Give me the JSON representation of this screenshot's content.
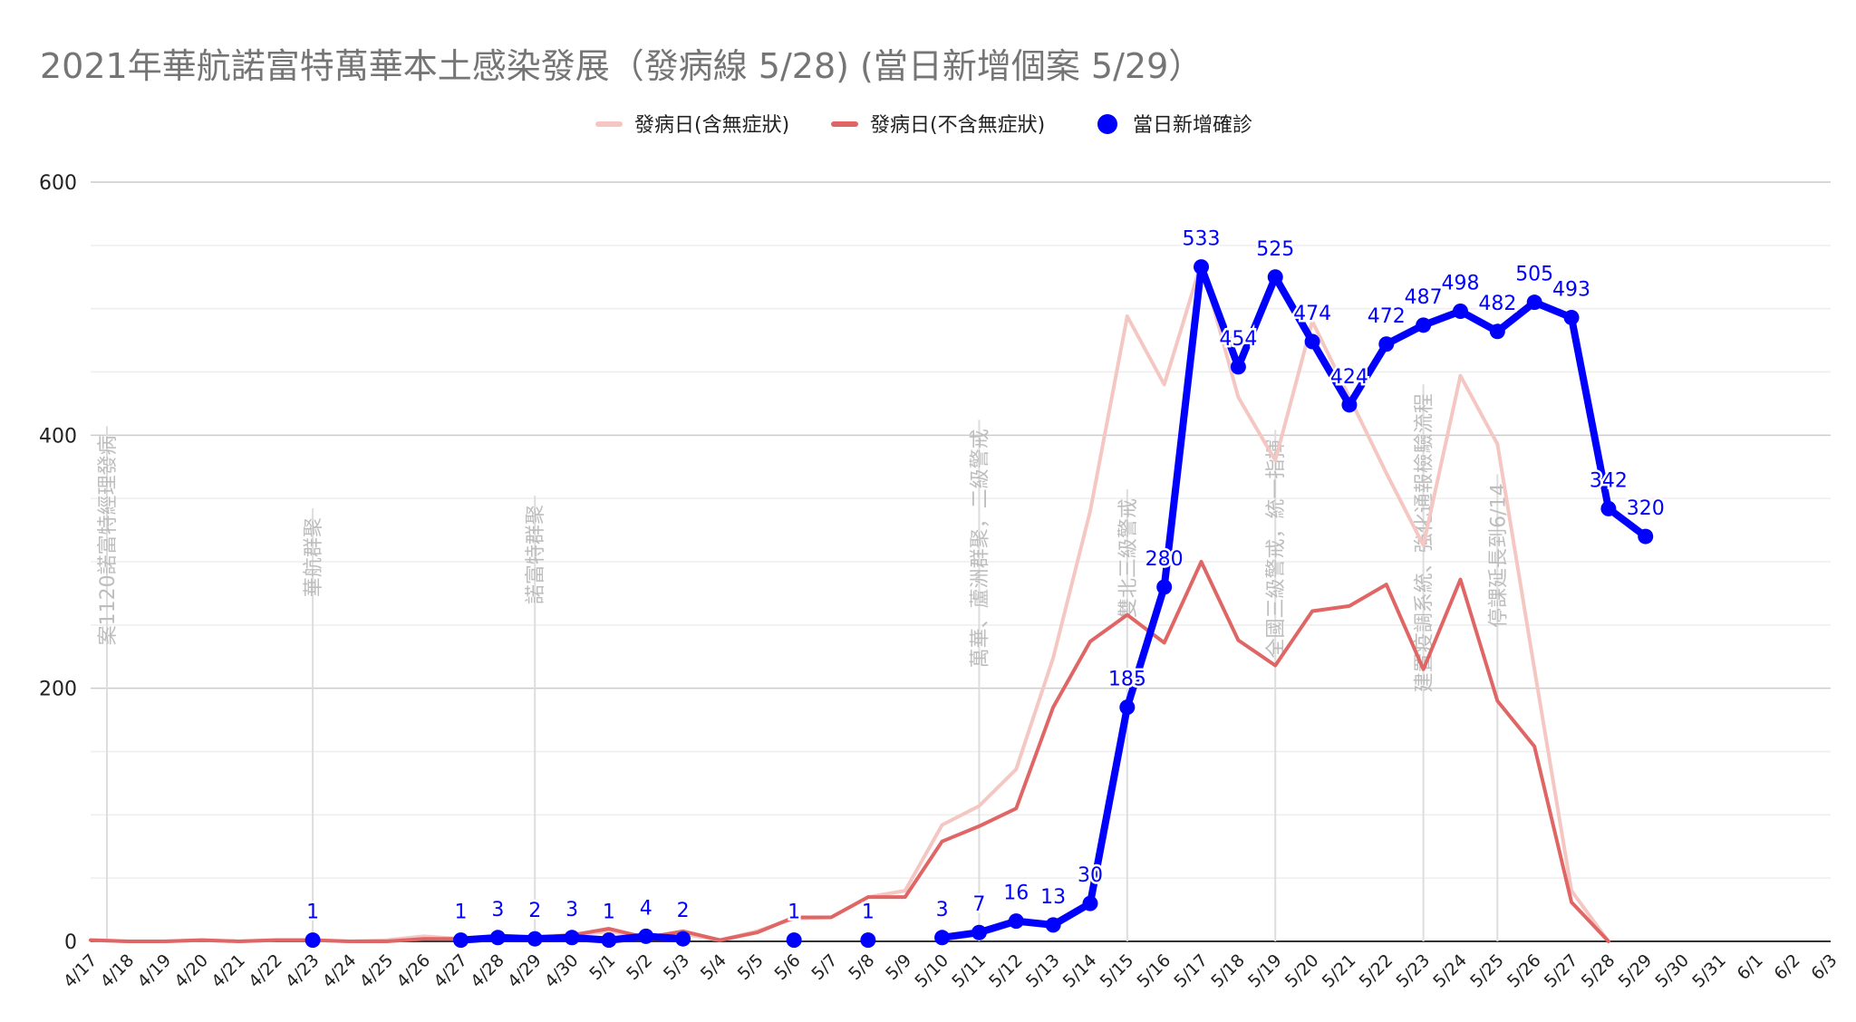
{
  "chart_data": {
    "type": "line",
    "title": "2021年華航諾富特萬華本土感染發展（發病線 5/28) (當日新增個案 5/29）",
    "categories": [
      "4/17",
      "4/18",
      "4/19",
      "4/20",
      "4/21",
      "4/22",
      "4/23",
      "4/24",
      "4/25",
      "4/26",
      "4/27",
      "4/28",
      "4/29",
      "4/30",
      "5/1",
      "5/2",
      "5/3",
      "5/4",
      "5/5",
      "5/6",
      "5/7",
      "5/8",
      "5/9",
      "5/10",
      "5/11",
      "5/12",
      "5/13",
      "5/14",
      "5/15",
      "5/16",
      "5/17",
      "5/18",
      "5/19",
      "5/20",
      "5/21",
      "5/22",
      "5/23",
      "5/24",
      "5/25",
      "5/26",
      "5/27",
      "5/28",
      "5/29",
      "5/30",
      "5/31",
      "6/1",
      "6/2",
      "6/3"
    ],
    "ylim": [
      0,
      600
    ],
    "yticks": [
      0,
      200,
      400,
      600
    ],
    "grid": true,
    "legend_position": "top",
    "series": [
      {
        "name": "發病日(含無症狀)",
        "color": "#f4c7c3",
        "values": [
          1,
          0,
          0,
          1,
          0,
          1,
          1,
          0,
          1,
          4,
          2,
          3,
          4,
          5,
          8,
          3,
          6,
          1,
          8,
          18,
          19,
          35,
          40,
          92,
          107,
          136,
          224,
          340,
          494,
          440,
          536,
          430,
          380,
          490,
          430,
          370,
          313,
          447,
          393,
          215,
          40,
          0,
          null,
          null,
          null,
          null,
          null,
          null
        ]
      },
      {
        "name": "發病日(不含無症狀)",
        "color": "#e06666",
        "values": [
          1,
          0,
          0,
          1,
          0,
          1,
          1,
          0,
          0,
          2,
          2,
          3,
          3,
          5,
          10,
          3,
          8,
          1,
          7,
          19,
          19,
          35,
          35,
          79,
          91,
          105,
          185,
          237,
          258,
          236,
          300,
          238,
          218,
          261,
          265,
          282,
          215,
          286,
          190,
          154,
          31,
          0,
          null,
          null,
          null,
          null,
          null,
          null
        ]
      },
      {
        "name": "當日新增確診",
        "color": "#0000ff",
        "values": [
          null,
          null,
          null,
          null,
          null,
          null,
          1,
          null,
          null,
          null,
          1,
          3,
          2,
          3,
          1,
          4,
          2,
          null,
          null,
          1,
          null,
          1,
          null,
          3,
          7,
          16,
          13,
          30,
          185,
          280,
          533,
          454,
          525,
          474,
          424,
          472,
          487,
          498,
          482,
          505,
          493,
          342,
          320,
          null,
          null,
          null,
          null,
          null
        ],
        "labels": {
          "4/23": "1",
          "4/27": "1",
          "4/28": "3",
          "4/29": "2",
          "4/30": "3",
          "5/1": "1",
          "5/2": "4",
          "5/3": "2",
          "5/6": "1",
          "5/8": "1",
          "5/10": "3",
          "5/11": "7",
          "5/12": "16",
          "5/13": "13",
          "5/14": "30",
          "5/15": "185",
          "5/16": "280",
          "5/17": "533",
          "5/18": "454",
          "5/19": "525",
          "5/20": "474",
          "5/21": "424",
          "5/22": "472",
          "5/23": "487",
          "5/24": "498",
          "5/25": "482",
          "5/26": "505",
          "5/27": "493",
          "5/28": "342",
          "5/29": "320"
        }
      }
    ],
    "annotations": [
      {
        "x": "4/17",
        "text": "案1120諾富特經理發病",
        "y_top": 400,
        "color": "#bdbdbd"
      },
      {
        "x": "4/23",
        "text": "華航群聚",
        "y_top": 335,
        "color": "#bdbdbd"
      },
      {
        "x": "4/29",
        "text": "諾富特群聚",
        "y_top": 345,
        "color": "#bdbdbd"
      },
      {
        "x": "5/11",
        "text": "萬華、蘆洲群聚，二級警戒",
        "y_top": 405,
        "color": "#bdbdbd"
      },
      {
        "x": "5/15",
        "text": "雙北三級警戒",
        "y_top": 350,
        "color": "#bdbdbd"
      },
      {
        "x": "5/19",
        "text": "全國三級警戒，統一指揮",
        "y_top": 397,
        "color": "#bdbdbd"
      },
      {
        "x": "5/23",
        "text": "建置疫調系統、強化通報檢驗流程",
        "y_top": 433,
        "color": "#bdbdbd"
      },
      {
        "x": "5/25",
        "text": "停課延長到6/14",
        "y_top": 362,
        "color": "#bdbdbd"
      }
    ],
    "colors": {
      "grid": "#cccccc",
      "minor_grid": "#eeeeee",
      "axis_text": "#222222",
      "title": "#757575",
      "annotation_line": "#dddddd",
      "label": "#0000ff"
    }
  }
}
